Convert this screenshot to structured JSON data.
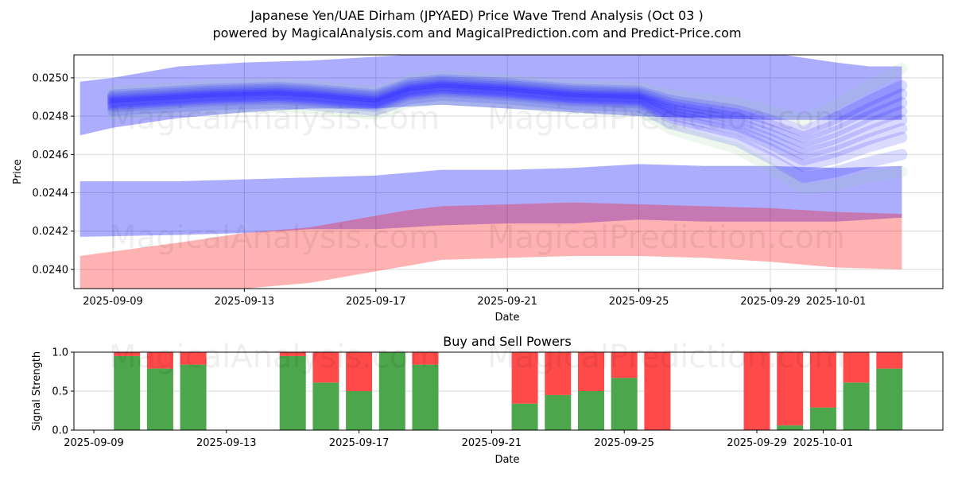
{
  "header": {
    "title": "Japanese Yen/UAE Dirham (JPYAED) Price Wave Trend Analysis (Oct 03 )",
    "subtitle": "powered by MagicalAnalysis.com and MagicalPrediction.com and Predict-Price.com"
  },
  "watermarks": [
    "MagicalAnalysis.com",
    "MagicalPrediction.com"
  ],
  "colors": {
    "wave_blue": "#0000ff",
    "band_blue": "#aeaefb",
    "band_red": "#ffb0b0",
    "overlap": "#b07ac8",
    "buy_green": "#4ca64c",
    "sell_red": "#ff4a4a",
    "grid": "#d9d9d9"
  },
  "chart_data": [
    {
      "type": "area",
      "title": "",
      "xlabel": "Date",
      "ylabel": "Price",
      "ylim": [
        0.0239,
        0.02512
      ],
      "xlim": [
        "2025-09-08",
        "2025-10-04"
      ],
      "grid": true,
      "yticks": [
        0.024,
        0.0242,
        0.0244,
        0.0246,
        0.0248,
        0.025
      ],
      "ytick_labels": [
        "0.0240",
        "0.0242",
        "0.0244",
        "0.0246",
        "0.0248",
        "0.0250"
      ],
      "xticks": [
        "2025-09-09",
        "2025-09-13",
        "2025-09-17",
        "2025-09-21",
        "2025-09-25",
        "2025-09-29",
        "2025-10-01"
      ],
      "bands": [
        {
          "name": "upper-wave-envelope",
          "color": "band_blue",
          "x": [
            "2025-09-08",
            "2025-09-09",
            "2025-09-11",
            "2025-09-13",
            "2025-09-15",
            "2025-09-17",
            "2025-09-19",
            "2025-09-21",
            "2025-09-23",
            "2025-09-25",
            "2025-09-27",
            "2025-09-29",
            "2025-10-01",
            "2025-10-02",
            "2025-10-03"
          ],
          "upper": [
            0.02498,
            0.025,
            0.02506,
            0.02508,
            0.02509,
            0.02511,
            0.02513,
            0.02514,
            0.02514,
            0.02514,
            0.02514,
            0.02513,
            0.02508,
            0.02506,
            0.02506
          ],
          "lower": [
            0.0247,
            0.02474,
            0.02479,
            0.02482,
            0.02484,
            0.02484,
            0.02486,
            0.02484,
            0.02482,
            0.0248,
            0.02479,
            0.02478,
            0.02478,
            0.02478,
            0.02478
          ]
        },
        {
          "name": "middle-support-band",
          "color": "band_blue",
          "x": [
            "2025-09-08",
            "2025-09-11",
            "2025-09-13",
            "2025-09-15",
            "2025-09-17",
            "2025-09-19",
            "2025-09-21",
            "2025-09-23",
            "2025-09-25",
            "2025-09-27",
            "2025-09-29",
            "2025-10-01",
            "2025-10-03"
          ],
          "upper": [
            0.02446,
            0.02446,
            0.02447,
            0.02448,
            0.02449,
            0.02452,
            0.02452,
            0.02453,
            0.02455,
            0.02454,
            0.02454,
            0.02453,
            0.02454
          ],
          "lower": [
            0.02417,
            0.02418,
            0.02419,
            0.02421,
            0.02421,
            0.02423,
            0.02424,
            0.02424,
            0.02426,
            0.02425,
            0.02425,
            0.02425,
            0.02427
          ]
        },
        {
          "name": "lower-red-band",
          "color": "band_red",
          "x": [
            "2025-09-08",
            "2025-09-11",
            "2025-09-13",
            "2025-09-15",
            "2025-09-17",
            "2025-09-18",
            "2025-09-19",
            "2025-09-21",
            "2025-09-23",
            "2025-09-25",
            "2025-09-27",
            "2025-09-29",
            "2025-10-01",
            "2025-10-03"
          ],
          "upper": [
            0.02407,
            0.02414,
            0.02419,
            0.02422,
            0.02428,
            0.02431,
            0.02433,
            0.02434,
            0.02435,
            0.02434,
            0.02433,
            0.02432,
            0.0243,
            0.02429
          ],
          "lower": [
            0.0239,
            0.0239,
            0.0239,
            0.02393,
            0.02399,
            0.02402,
            0.02405,
            0.02406,
            0.02407,
            0.02407,
            0.02406,
            0.02404,
            0.02401,
            0.024
          ]
        }
      ],
      "wave_center": {
        "name": "price-wave-bundle",
        "color": "wave_blue",
        "x": [
          "2025-09-09",
          "2025-09-10",
          "2025-09-12",
          "2025-09-14",
          "2025-09-15",
          "2025-09-17",
          "2025-09-18",
          "2025-09-19",
          "2025-09-21",
          "2025-09-23",
          "2025-09-25",
          "2025-09-26",
          "2025-09-28",
          "2025-09-29",
          "2025-09-30",
          "2025-10-01",
          "2025-10-02",
          "2025-10-03"
        ],
        "y": [
          0.02487,
          0.02488,
          0.0249,
          0.02491,
          0.0249,
          0.02487,
          0.02493,
          0.02495,
          0.02493,
          0.0249,
          0.02489,
          0.02482,
          0.02475,
          0.02468,
          0.0246,
          0.02465,
          0.02472,
          0.02478
        ]
      }
    },
    {
      "type": "bar",
      "title": "Buy and Sell Powers",
      "xlabel": "Date",
      "ylabel": "Signal Strength",
      "ylim": [
        0,
        1
      ],
      "yticks": [
        0.0,
        0.5,
        1.0
      ],
      "ytick_labels": [
        "0.0",
        "0.5",
        "1.0"
      ],
      "xticks": [
        "2025-09-09",
        "2025-09-13",
        "2025-09-17",
        "2025-09-21",
        "2025-09-25",
        "2025-09-29",
        "2025-10-01"
      ],
      "xlim": [
        "2025-09-08",
        "2025-10-04"
      ],
      "grid": true,
      "categories": [
        "2025-09-10",
        "2025-09-11",
        "2025-09-12",
        "2025-09-15",
        "2025-09-16",
        "2025-09-17",
        "2025-09-18",
        "2025-09-19",
        "2025-09-22",
        "2025-09-23",
        "2025-09-24",
        "2025-09-25",
        "2025-09-26",
        "2025-09-29",
        "2025-09-30",
        "2025-10-01",
        "2025-10-02",
        "2025-10-03"
      ],
      "series": [
        {
          "name": "Buy",
          "color": "buy_green",
          "values": [
            0.95,
            0.79,
            0.84,
            0.95,
            0.61,
            0.5,
            1.0,
            0.84,
            0.34,
            0.45,
            0.5,
            0.67,
            0.0,
            0.0,
            0.06,
            0.29,
            0.61,
            0.79
          ]
        },
        {
          "name": "Sell",
          "color": "sell_red",
          "values": [
            0.05,
            0.21,
            0.16,
            0.05,
            0.39,
            0.5,
            0.0,
            0.16,
            0.66,
            0.55,
            0.5,
            0.33,
            1.0,
            1.0,
            0.94,
            0.71,
            0.39,
            0.21
          ]
        }
      ]
    }
  ]
}
